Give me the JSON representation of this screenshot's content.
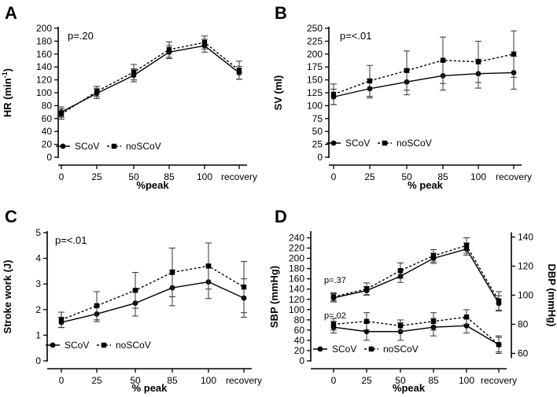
{
  "chart_data": [
    {
      "type": "line",
      "panel": "A",
      "xlabel": "%peak",
      "ylabel": "HR (min",
      "ylabel_sup": "-1",
      "ylabel_close": ")",
      "categories": [
        "0",
        "25",
        "50",
        "85",
        "100",
        "recovery"
      ],
      "ylim": [
        0,
        200
      ],
      "yticks": [
        0,
        20,
        40,
        60,
        80,
        100,
        120,
        140,
        160,
        180,
        200
      ],
      "annotation": "p=.20",
      "legend_position": "bottom-left",
      "series": [
        {
          "name": "SCoV",
          "marker": "circle",
          "style": "solid",
          "values": [
            70,
            99,
            127,
            163,
            173,
            131
          ],
          "errors": [
            8,
            8,
            10,
            10,
            10,
            10
          ]
        },
        {
          "name": "noSCoV",
          "marker": "square",
          "style": "dashed",
          "values": [
            67,
            102,
            132,
            167,
            178,
            135
          ],
          "errors": [
            8,
            8,
            12,
            12,
            10,
            14
          ]
        }
      ]
    },
    {
      "type": "line",
      "panel": "B",
      "xlabel": "% peak",
      "ylabel": "SV (ml)",
      "categories": [
        "0",
        "25",
        "50",
        "85",
        "100",
        "recovery"
      ],
      "ylim": [
        0,
        250
      ],
      "yticks": [
        0,
        25,
        50,
        75,
        100,
        125,
        150,
        175,
        200,
        225,
        250
      ],
      "annotation": "p=<.01",
      "legend_position": "bottom-left",
      "series": [
        {
          "name": "SCoV",
          "marker": "circle",
          "style": "solid",
          "values": [
            117,
            133,
            146,
            158,
            162,
            164
          ],
          "errors": [
            15,
            18,
            25,
            28,
            28,
            32
          ]
        },
        {
          "name": "noSCoV",
          "marker": "square",
          "style": "dashed",
          "values": [
            122,
            148,
            168,
            188,
            185,
            200
          ],
          "errors": [
            20,
            30,
            38,
            45,
            40,
            45
          ]
        }
      ]
    },
    {
      "type": "line",
      "panel": "C",
      "xlabel": "% peak",
      "ylabel": "Stroke work (J)",
      "categories": [
        "0",
        "25",
        "50",
        "85",
        "100",
        "recovery"
      ],
      "ylim": [
        0,
        5
      ],
      "yticks": [
        0,
        1,
        2,
        3,
        4,
        5
      ],
      "annotation": "p=<.01",
      "legend_position": "bottom-left",
      "series": [
        {
          "name": "SCoV",
          "marker": "circle",
          "style": "solid",
          "values": [
            1.5,
            1.83,
            2.25,
            2.85,
            3.08,
            2.45
          ],
          "errors": [
            0.2,
            0.3,
            0.5,
            0.7,
            0.65,
            0.75
          ]
        },
        {
          "name": "noSCoV",
          "marker": "square",
          "style": "dashed",
          "values": [
            1.6,
            2.15,
            2.75,
            3.45,
            3.7,
            2.88
          ],
          "errors": [
            0.3,
            0.55,
            0.7,
            0.95,
            0.9,
            1.0
          ]
        }
      ]
    },
    {
      "type": "line",
      "panel": "D",
      "xlabel": "%peak",
      "ylabel": "SBP (mmHg)",
      "ylabel_right": "DBP (mmHg)",
      "categories": [
        "0",
        "25",
        "50",
        "85",
        "100",
        "recovery"
      ],
      "ylim": [
        0,
        250
      ],
      "yticks": [
        0,
        20,
        40,
        60,
        80,
        100,
        120,
        140,
        160,
        180,
        200,
        220,
        240
      ],
      "ylim_right": [
        50,
        150
      ],
      "yticks_right": [
        60,
        80,
        100,
        120,
        140
      ],
      "annotation_sbp": "p=.37",
      "annotation_dbp": "p=.02",
      "legend_position": "bottom-left",
      "series": [
        {
          "name": "SCoV",
          "group": "SBP",
          "axis": "left",
          "marker": "circle",
          "style": "solid",
          "values": [
            123,
            137,
            165,
            200,
            218,
            112
          ],
          "errors": [
            8,
            8,
            12,
            10,
            12,
            15
          ]
        },
        {
          "name": "noSCoV",
          "group": "SBP",
          "axis": "left",
          "marker": "square",
          "style": "dashed",
          "values": [
            125,
            140,
            176,
            205,
            225,
            117
          ],
          "errors": [
            8,
            12,
            15,
            12,
            15,
            18
          ]
        },
        {
          "name": "SCoV",
          "group": "DBP",
          "axis": "right",
          "marker": "circle",
          "style": "solid",
          "values": [
            78,
            75,
            75,
            78,
            79,
            66
          ],
          "errors": [
            4,
            6,
            6,
            6,
            5,
            5
          ]
        },
        {
          "name": "noSCoV",
          "group": "DBP",
          "axis": "right",
          "marker": "square",
          "style": "dashed",
          "values": [
            80,
            82,
            79,
            82,
            85,
            66
          ],
          "errors": [
            4,
            6,
            4,
            6,
            5,
            6
          ]
        }
      ]
    }
  ]
}
